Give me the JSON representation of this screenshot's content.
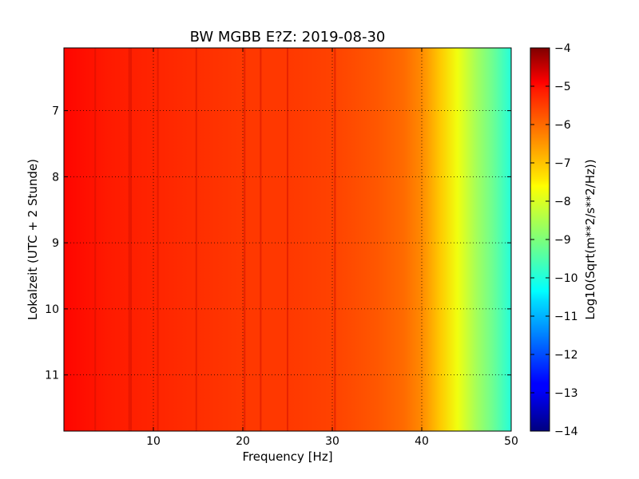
{
  "chart_data": {
    "type": "heatmap",
    "title": "BW MGBB E?Z: 2019-08-30",
    "xlabel": "Frequency [Hz]",
    "ylabel": "Lokalzeit (UTC + 2 Stunde)",
    "xlim": [
      0,
      50
    ],
    "ylim": [
      11.85,
      6.05
    ],
    "x_ticks": [
      10,
      20,
      30,
      40,
      50
    ],
    "x_tick_labels": [
      "10",
      "20",
      "30",
      "40",
      "50"
    ],
    "y_ticks": [
      7,
      8,
      9,
      10,
      11
    ],
    "y_tick_labels": [
      "7",
      "8",
      "9",
      "10",
      "11"
    ],
    "y_axis_inverted": true,
    "grid": true,
    "colormap": "jet",
    "colorbar": {
      "label": "Log10(Sqrt(m**2/s**2/Hz))",
      "range": [
        -14,
        -4
      ],
      "ticks": [
        -4,
        -5,
        -6,
        -7,
        -8,
        -9,
        -10,
        -11,
        -12,
        -13,
        -14
      ],
      "tick_labels": [
        "−4",
        "−5",
        "−6",
        "−7",
        "−8",
        "−9",
        "−10",
        "−11",
        "−12",
        "−13",
        "−14"
      ]
    },
    "spectrum_profile": {
      "frequency_hz": [
        0,
        5,
        10,
        15,
        20,
        25,
        30,
        35,
        38,
        40,
        42,
        44,
        46,
        48,
        50
      ],
      "log10_amplitude": [
        -5.3,
        -5.5,
        -5.6,
        -5.7,
        -5.8,
        -5.8,
        -5.9,
        -6.1,
        -6.3,
        -6.6,
        -7.2,
        -7.9,
        -8.6,
        -9.2,
        -9.9
      ]
    },
    "persistent_lines_hz": [
      3.5,
      7.3,
      7.5,
      10.5,
      14.8,
      20.2,
      22,
      25,
      30.3
    ]
  }
}
